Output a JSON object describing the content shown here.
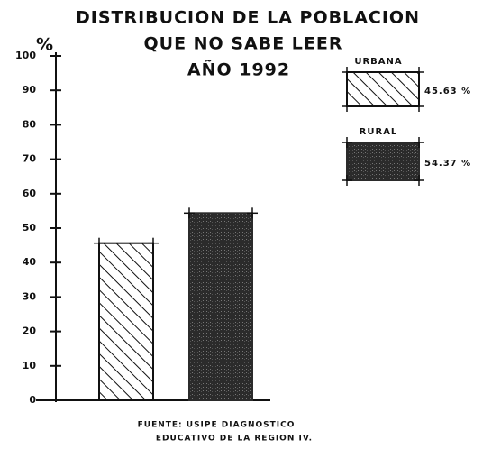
{
  "chart_data": {
    "type": "bar",
    "title": [
      "DISTRIBUCION DE LA POBLACION",
      "QUE NO SABE LEER",
      "AÑO 1992"
    ],
    "y_label": "%",
    "ylim": [
      0,
      100
    ],
    "yticks": [
      0,
      10,
      20,
      30,
      40,
      50,
      60,
      70,
      80,
      90,
      100
    ],
    "grid": false,
    "series": [
      {
        "name": "URBANA",
        "fill": "hatch",
        "color": "#111111",
        "values": [
          45.63
        ],
        "value_labels": [
          "45.63 %"
        ]
      },
      {
        "name": "RURAL",
        "fill": "stipple",
        "color": "#2b2b2b",
        "values": [
          54.37
        ],
        "value_labels": [
          "54.37 %"
        ]
      }
    ],
    "source": [
      "FUENTE: USIPE DIAGNOSTICO",
      "EDUCATIVO DE LA REGION IV."
    ]
  }
}
